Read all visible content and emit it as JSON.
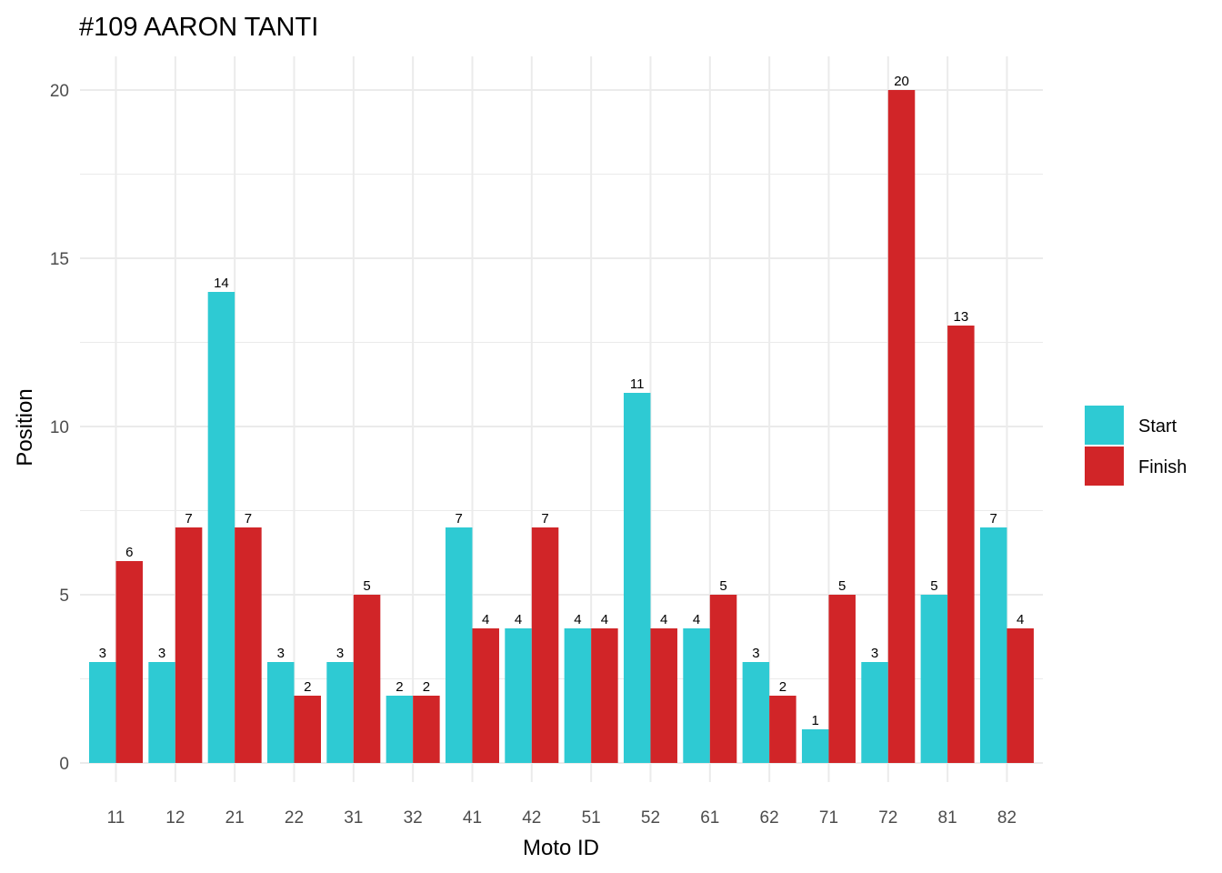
{
  "chart_data": {
    "type": "bar",
    "title": "#109 AARON TANTI",
    "xlabel": "Moto ID",
    "ylabel": "Position",
    "categories": [
      "11",
      "12",
      "21",
      "22",
      "31",
      "32",
      "41",
      "42",
      "51",
      "52",
      "61",
      "62",
      "71",
      "72",
      "81",
      "82"
    ],
    "series": [
      {
        "name": "Start",
        "color": "#2ECAD3",
        "values": [
          3,
          3,
          14,
          3,
          3,
          2,
          7,
          4,
          4,
          11,
          4,
          3,
          1,
          3,
          5,
          7
        ]
      },
      {
        "name": "Finish",
        "color": "#D12528",
        "values": [
          6,
          7,
          7,
          2,
          5,
          2,
          4,
          7,
          4,
          4,
          5,
          2,
          5,
          20,
          13,
          4
        ]
      }
    ],
    "ylim": [
      0,
      20
    ],
    "yticks": [
      0,
      5,
      10,
      15,
      20
    ],
    "grid": true,
    "legend_position": "right"
  }
}
